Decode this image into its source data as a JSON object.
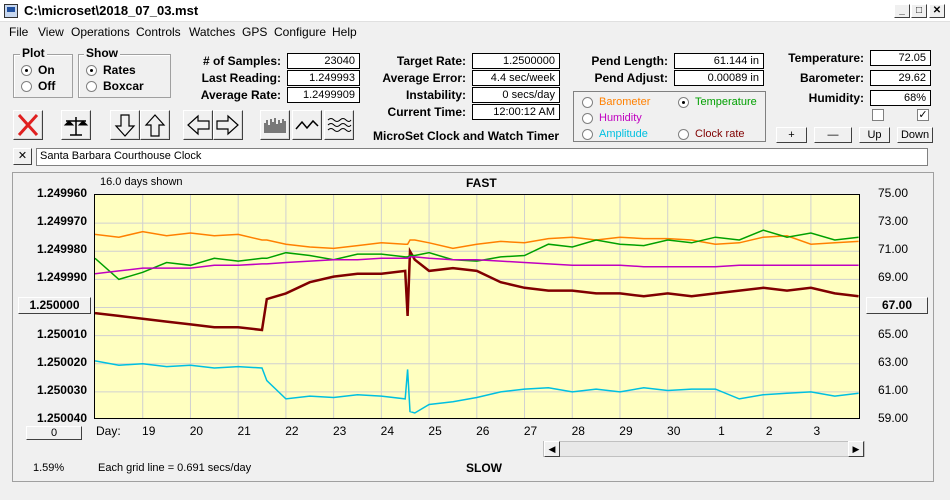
{
  "window": {
    "title": "C:\\microset\\2018_07_03.mst"
  },
  "menu": [
    "File",
    "View",
    "Operations",
    "Controls",
    "Watches",
    "GPS",
    "Configure",
    "Help"
  ],
  "plot_group": {
    "title": "Plot",
    "options": [
      "On",
      "Off"
    ],
    "selected": "On"
  },
  "show_group": {
    "title": "Show",
    "options": [
      "Rates",
      "Boxcar"
    ],
    "selected": "Rates"
  },
  "stats": {
    "samples_label": "# of Samples:",
    "samples": "23040",
    "last_reading_label": "Last Reading:",
    "last_reading": "1.249993",
    "average_rate_label": "Average Rate:",
    "average_rate": "1.2499909",
    "target_rate_label": "Target Rate:",
    "target_rate": "1.2500000",
    "average_error_label": "Average Error:",
    "average_error": "4.4 sec/week",
    "instability_label": "Instability:",
    "instability": "0 secs/day",
    "current_time_label": "Current Time:",
    "current_time": "12:00:12 AM",
    "pend_length_label": "Pend Length:",
    "pend_length": "61.144 in",
    "pend_adjust_label": "Pend Adjust:",
    "pend_adjust": "0.00089 in",
    "temperature_label": "Temperature:",
    "temperature": "72.05",
    "barometer_label": "Barometer:",
    "barometer": "29.62",
    "humidity_label": "Humidity:",
    "humidity": "68%"
  },
  "app_subtitle": "MicroSet Clock and Watch Timer",
  "sensor_options": [
    {
      "label": "Barometer",
      "color": "#ff8000",
      "selected": false
    },
    {
      "label": "Temperature",
      "color": "#00a000",
      "selected": true
    },
    {
      "label": "Humidity",
      "color": "#c000c0",
      "selected": false
    },
    {
      "label": "Amplitude",
      "color": "#00c0e0",
      "selected": false
    },
    {
      "label": "Clock rate",
      "color": "#800000",
      "selected": false
    }
  ],
  "adjust_buttons": {
    "plus": "+",
    "minus": "—",
    "up": "Up",
    "down": "Down"
  },
  "checkboxes": [
    {
      "checked": false
    },
    {
      "checked": true
    }
  ],
  "watch_name": "Santa Barbara Courthouse Clock",
  "close_watch_label": "✕",
  "chart": {
    "days_shown": "16.0 days shown",
    "fast_label": "FAST",
    "slow_label": "SLOW",
    "day_label": "Day:",
    "center_left_button": "1.250000",
    "center_right_button": "67.00",
    "offset_button": "0",
    "percent": "1.59%",
    "grid_note": "Each grid line = 0.691 secs/day"
  },
  "chart_data": {
    "type": "line",
    "x_unit": "day",
    "x_ticks": [
      "19",
      "20",
      "21",
      "22",
      "23",
      "24",
      "25",
      "26",
      "27",
      "28",
      "29",
      "30",
      "1",
      "2",
      "3"
    ],
    "x": [
      18.0,
      18.5,
      19.0,
      19.5,
      20.0,
      20.5,
      21.0,
      21.5,
      21.6,
      22.0,
      22.5,
      23.0,
      23.5,
      24.0,
      24.5,
      24.55,
      24.6,
      24.7,
      25.0,
      25.5,
      26.0,
      26.5,
      27.0,
      27.5,
      28.0,
      28.5,
      29.0,
      29.5,
      30.0,
      30.5,
      31.0,
      31.5,
      32.0,
      32.5,
      33.0,
      33.5,
      34.0
    ],
    "left_axis": {
      "ticks": [
        "1.249960",
        "1.249970",
        "1.249980",
        "1.249990",
        "1.250000",
        "1.250010",
        "1.250020",
        "1.250030",
        "1.250040"
      ],
      "ylim": [
        1.24996,
        1.25004
      ]
    },
    "right_axis": {
      "ticks": [
        "75.00",
        "73.00",
        "71.00",
        "69.00",
        "67.00",
        "65.00",
        "63.00",
        "61.00",
        "59.00"
      ],
      "ylim": [
        59.0,
        75.0
      ]
    },
    "series": [
      {
        "name": "Clock rate",
        "axis": "left",
        "color": "#800000",
        "values": [
          1.250002,
          1.250003,
          1.250004,
          1.250005,
          1.250006,
          1.250007,
          1.250007,
          1.250008,
          1.249997,
          1.249995,
          1.249991,
          1.249989,
          1.249988,
          1.249988,
          1.249987,
          1.250003,
          1.24998,
          1.249983,
          1.249987,
          1.249986,
          1.249987,
          1.249991,
          1.249993,
          1.249994,
          1.249994,
          1.249995,
          1.249995,
          1.249996,
          1.249995,
          1.249996,
          1.249995,
          1.249994,
          1.249993,
          1.249994,
          1.249993,
          1.249995,
          1.249996
        ]
      },
      {
        "name": "Barometer",
        "axis": "right",
        "color": "#ff8000",
        "values": [
          72.2,
          72.0,
          72.4,
          72.1,
          72.3,
          72.1,
          72.2,
          71.8,
          71.8,
          71.5,
          71.3,
          71.2,
          71.4,
          71.6,
          71.5,
          71.5,
          71.8,
          71.8,
          71.6,
          71.2,
          71.5,
          71.7,
          71.6,
          71.9,
          72.0,
          71.8,
          72.0,
          71.9,
          71.9,
          71.8,
          71.5,
          71.6,
          72.0,
          72.1,
          71.5,
          71.6,
          71.7
        ]
      },
      {
        "name": "Temperature",
        "axis": "right",
        "color": "#00a000",
        "values": [
          70.5,
          69.0,
          69.5,
          70.2,
          70.0,
          70.5,
          70.3,
          70.5,
          70.5,
          70.9,
          70.7,
          70.4,
          70.8,
          70.8,
          70.6,
          70.6,
          70.7,
          70.7,
          70.9,
          70.4,
          70.3,
          70.6,
          70.7,
          71.5,
          71.3,
          71.8,
          71.5,
          71.4,
          71.8,
          71.6,
          72.0,
          71.8,
          72.5,
          72.0,
          72.3,
          71.8,
          72.0
        ]
      },
      {
        "name": "Humidity",
        "axis": "right",
        "color": "#c000c0",
        "values": [
          69.4,
          69.6,
          69.8,
          69.8,
          69.8,
          70.0,
          70.0,
          70.1,
          70.1,
          70.2,
          70.3,
          70.4,
          70.4,
          70.5,
          70.5,
          70.5,
          70.6,
          70.6,
          70.5,
          70.4,
          70.4,
          70.3,
          70.2,
          70.1,
          70.0,
          70.0,
          70.0,
          69.9,
          69.9,
          69.9,
          69.9,
          70.0,
          70.0,
          70.0,
          70.0,
          70.0,
          70.0
        ]
      },
      {
        "name": "Amplitude",
        "axis": "right",
        "color": "#00c0e0",
        "values": [
          63.2,
          62.9,
          63.0,
          62.8,
          62.9,
          62.7,
          62.8,
          62.7,
          61.8,
          60.5,
          60.7,
          60.6,
          60.8,
          60.7,
          60.5,
          62.6,
          59.6,
          59.5,
          60.1,
          60.3,
          60.6,
          61.0,
          61.2,
          61.3,
          61.0,
          61.2,
          61.0,
          61.3,
          61.1,
          61.2,
          61.2,
          60.5,
          60.8,
          60.9,
          61.0,
          60.7,
          60.9
        ]
      }
    ]
  }
}
